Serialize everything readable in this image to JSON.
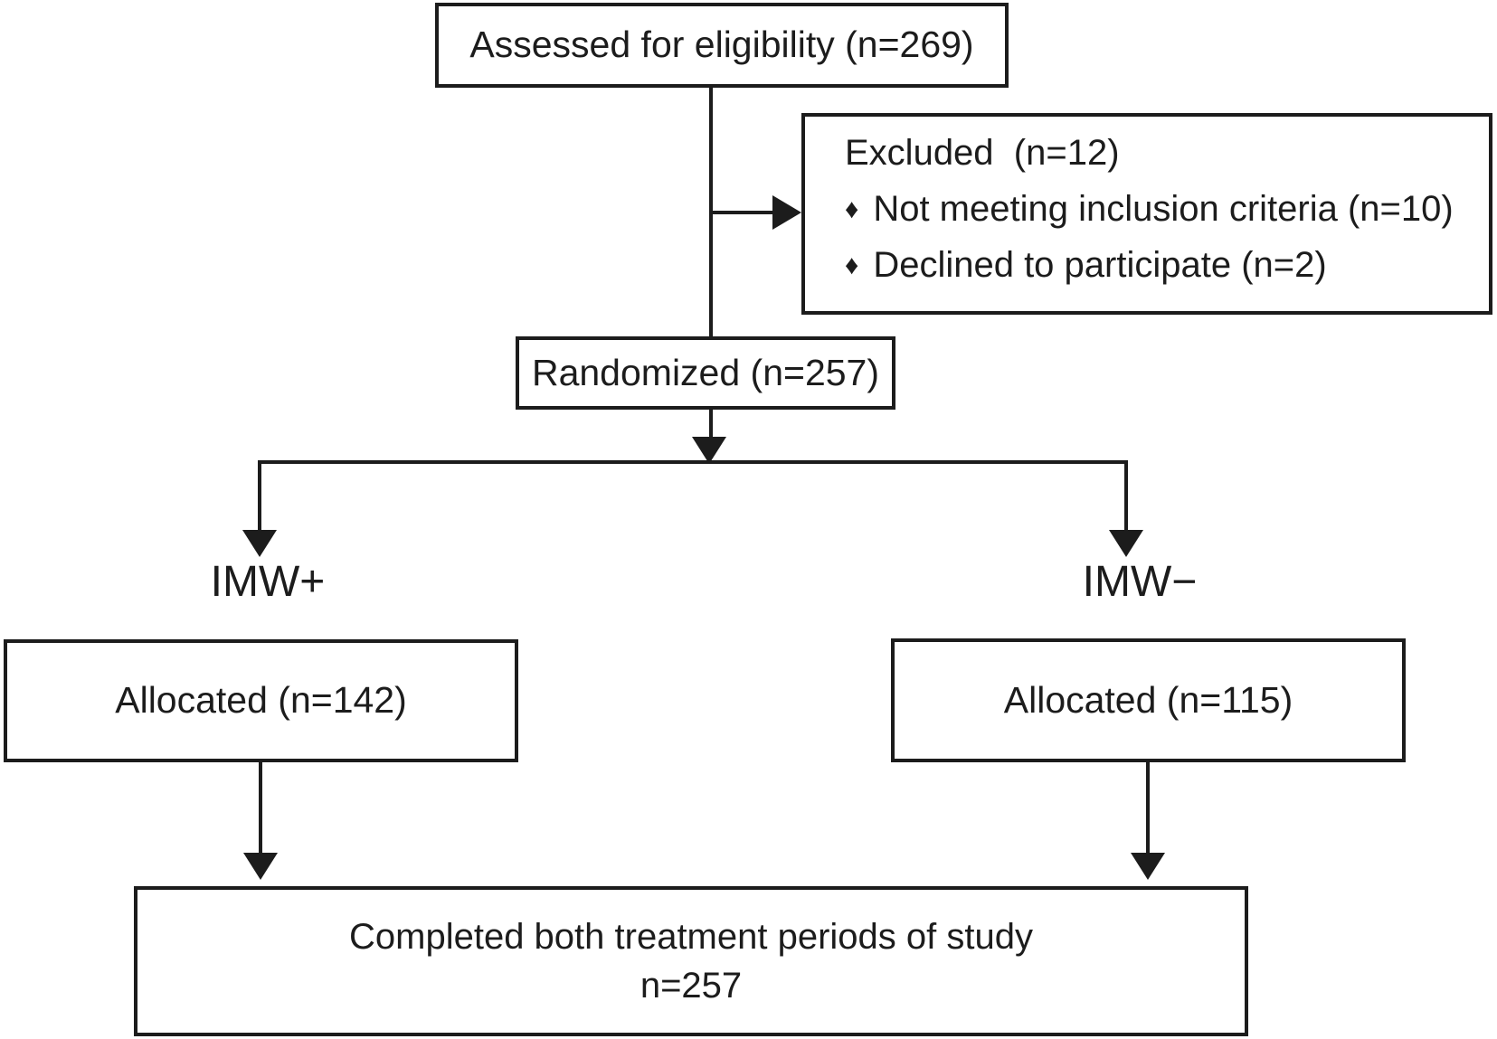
{
  "colors": {
    "ink": "#1c1c1c",
    "background": "#ffffff"
  },
  "flow": {
    "assessed": {
      "label": "Assessed for eligibility (n=269)"
    },
    "excluded": {
      "title": "Excluded  (n=12)",
      "items": [
        {
          "bullet": "♦",
          "text": "Not meeting inclusion criteria (n=10)"
        },
        {
          "bullet": "♦",
          "text": "Declined to participate (n=2)"
        }
      ]
    },
    "randomized": {
      "label": "Randomized (n=257)"
    },
    "branches": {
      "left": {
        "group_label": "IMW+",
        "allocated_label": "Allocated (n=142)"
      },
      "right": {
        "group_label": "IMW−",
        "allocated_label": "Allocated (n=115)"
      }
    },
    "completed": {
      "line1": "Completed both treatment periods of study",
      "line2": "n=257"
    }
  }
}
